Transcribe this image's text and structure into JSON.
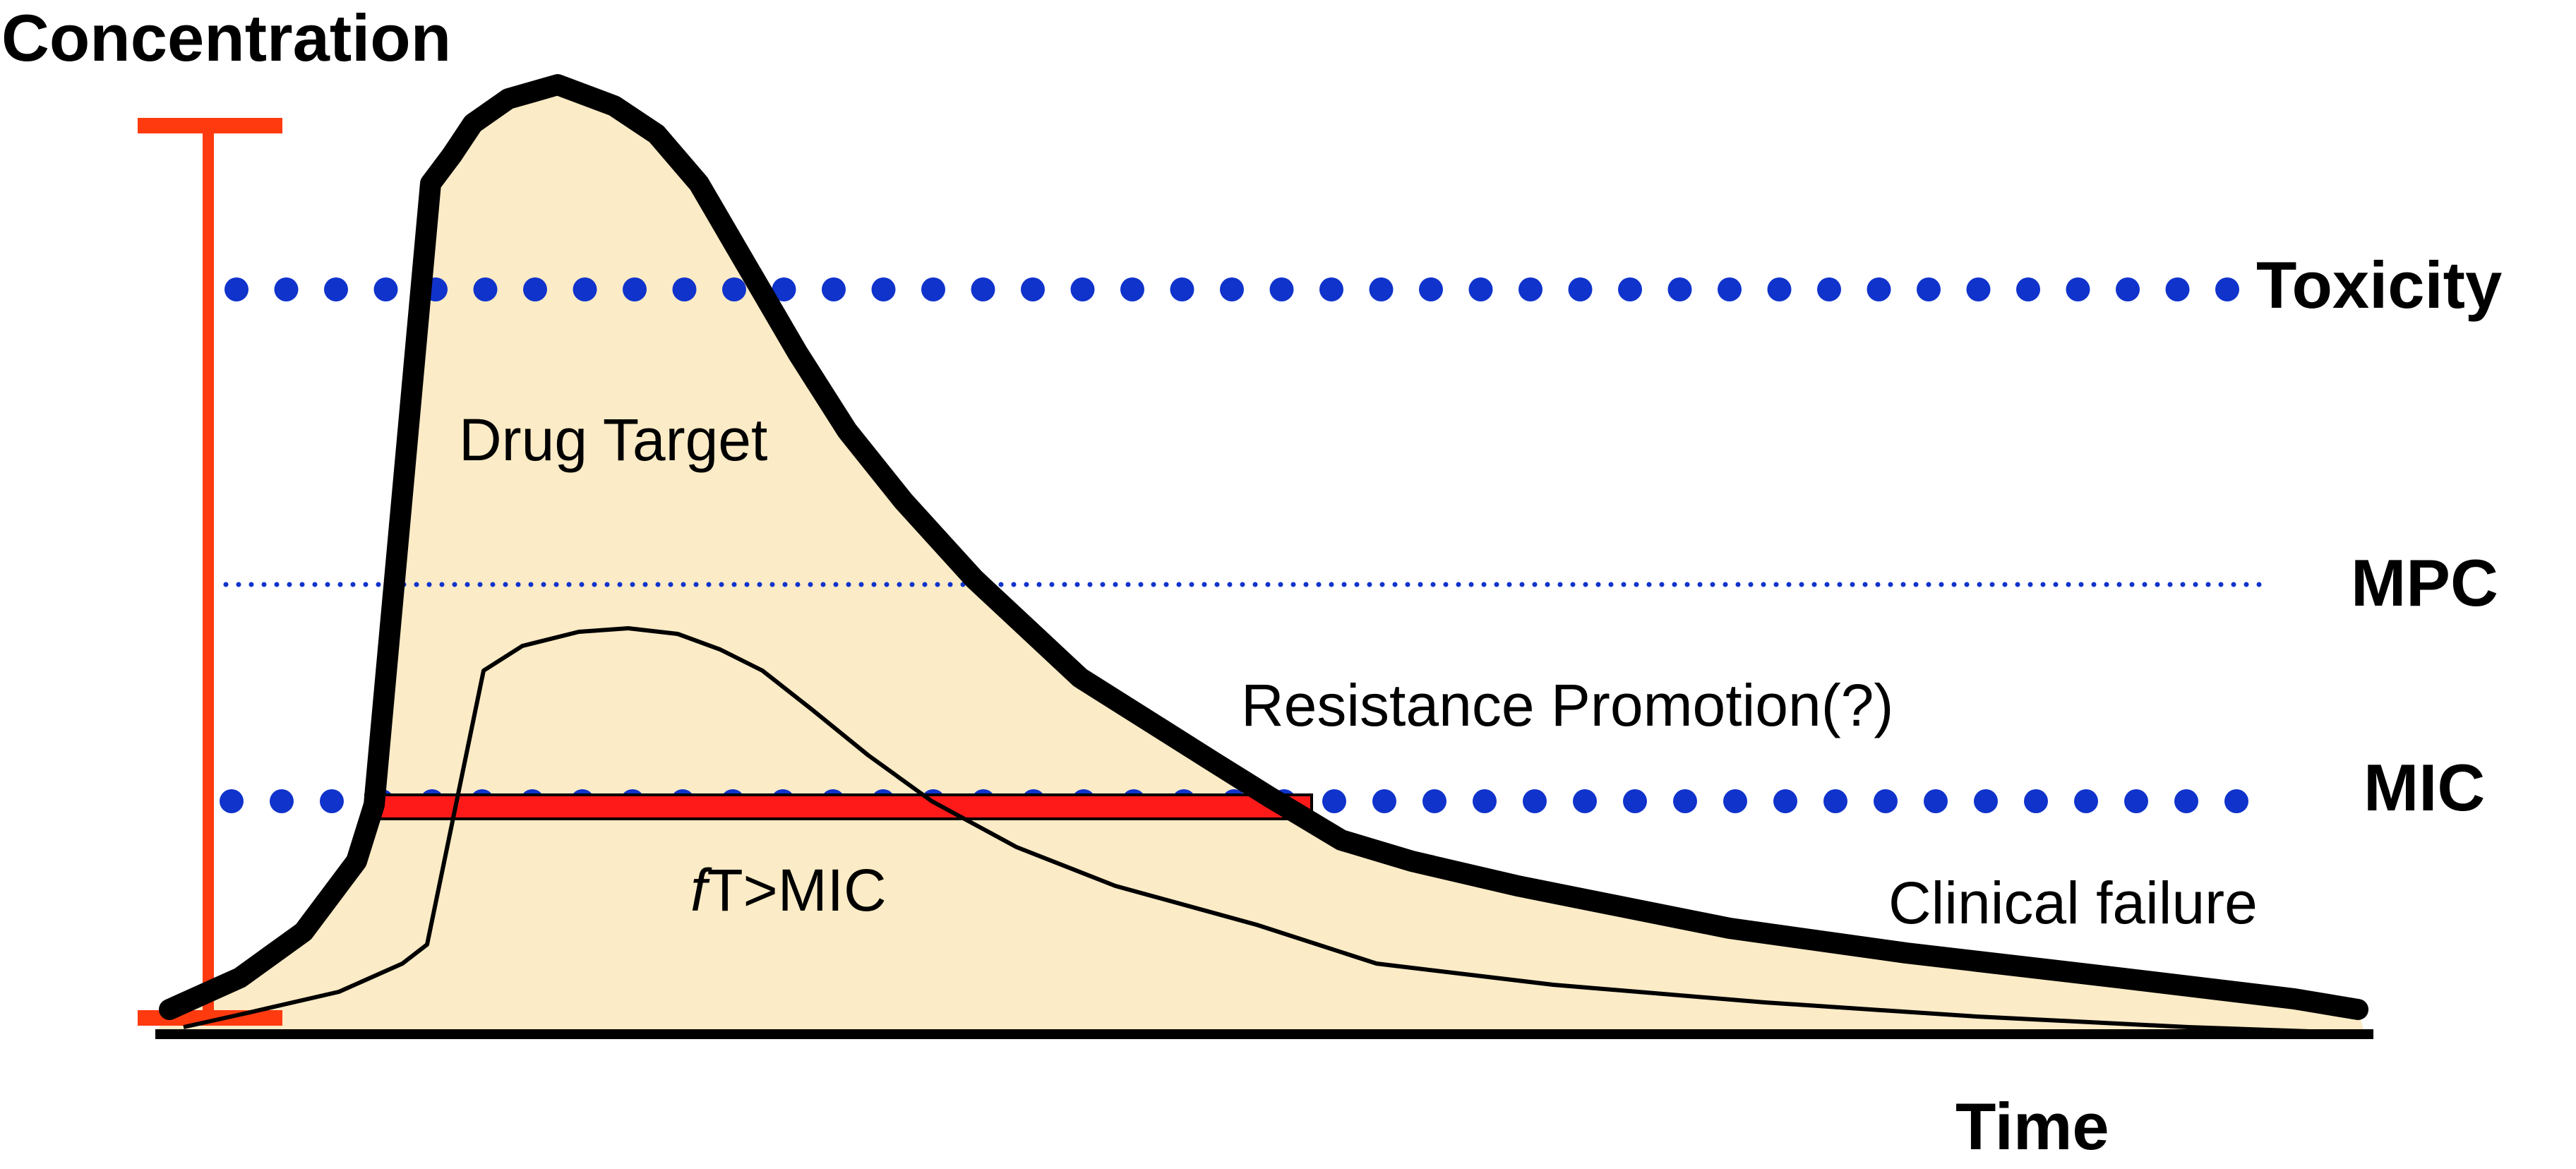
{
  "axes": {
    "y_label": "Concentration",
    "x_label": "Time"
  },
  "thresholds": {
    "toxicity": "Toxicity",
    "mpc": "MPC",
    "mic": "MIC"
  },
  "regions": {
    "drug_target": "Drug Target",
    "resistance": "Resistance Promotion(?)",
    "clinical_failure": "Clinical failure",
    "ft_mic_prefix": "f",
    "ft_mic_rest": "T>MIC"
  },
  "colors": {
    "fill": "#FBEBC6",
    "curve": "#000000",
    "threshold_dots": "#1033CC",
    "range_bar": "#FF3A0F",
    "ft_bar": "#FF1A1A"
  }
}
